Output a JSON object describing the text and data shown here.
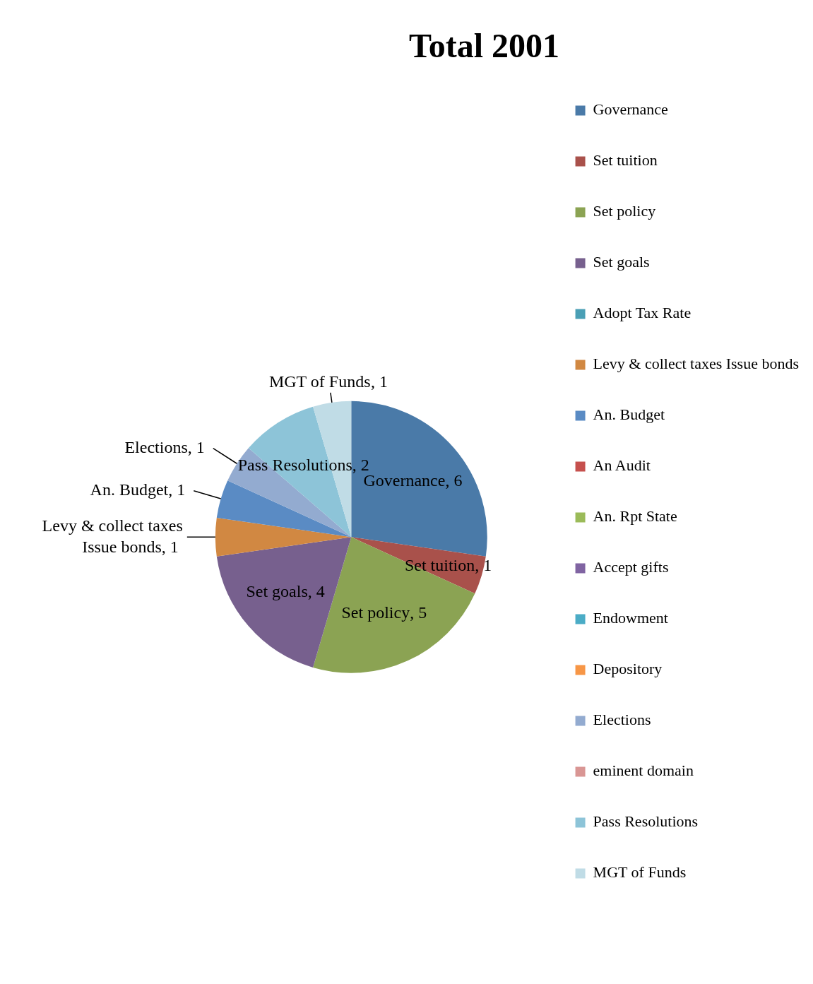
{
  "chart_data": {
    "type": "pie",
    "title": "Total 2001",
    "categories": [
      "Governance",
      "Set tuition",
      "Set policy",
      "Set goals",
      "Adopt Tax Rate",
      "Levy & collect taxes Issue bonds",
      "An. Budget",
      "An Audit",
      "An. Rpt State",
      "Accept gifts",
      "Endowment",
      "Depository",
      "Elections",
      "eminent domain",
      "Pass Resolutions",
      "MGT of Funds"
    ],
    "values": [
      6,
      1,
      5,
      4,
      0,
      1,
      1,
      0,
      0,
      0,
      0,
      0,
      1,
      0,
      2,
      1
    ],
    "colors": [
      "#4a7aa8",
      "#a9514b",
      "#8ba353",
      "#77608e",
      "#4a9fb5",
      "#d18842",
      "#5a8bc4",
      "#c6504d",
      "#9bbb59",
      "#8064a2",
      "#4bacc6",
      "#f79646",
      "#93abd0",
      "#d99694",
      "#8dc4d8",
      "#c0dce6"
    ],
    "value_labels": [
      ", 6",
      ", 1",
      ", 5",
      ", 4",
      null,
      ", 1",
      ", 1",
      null,
      null,
      null,
      null,
      null,
      ", 1",
      null,
      ", 2",
      ", 1"
    ],
    "legend": "right"
  }
}
